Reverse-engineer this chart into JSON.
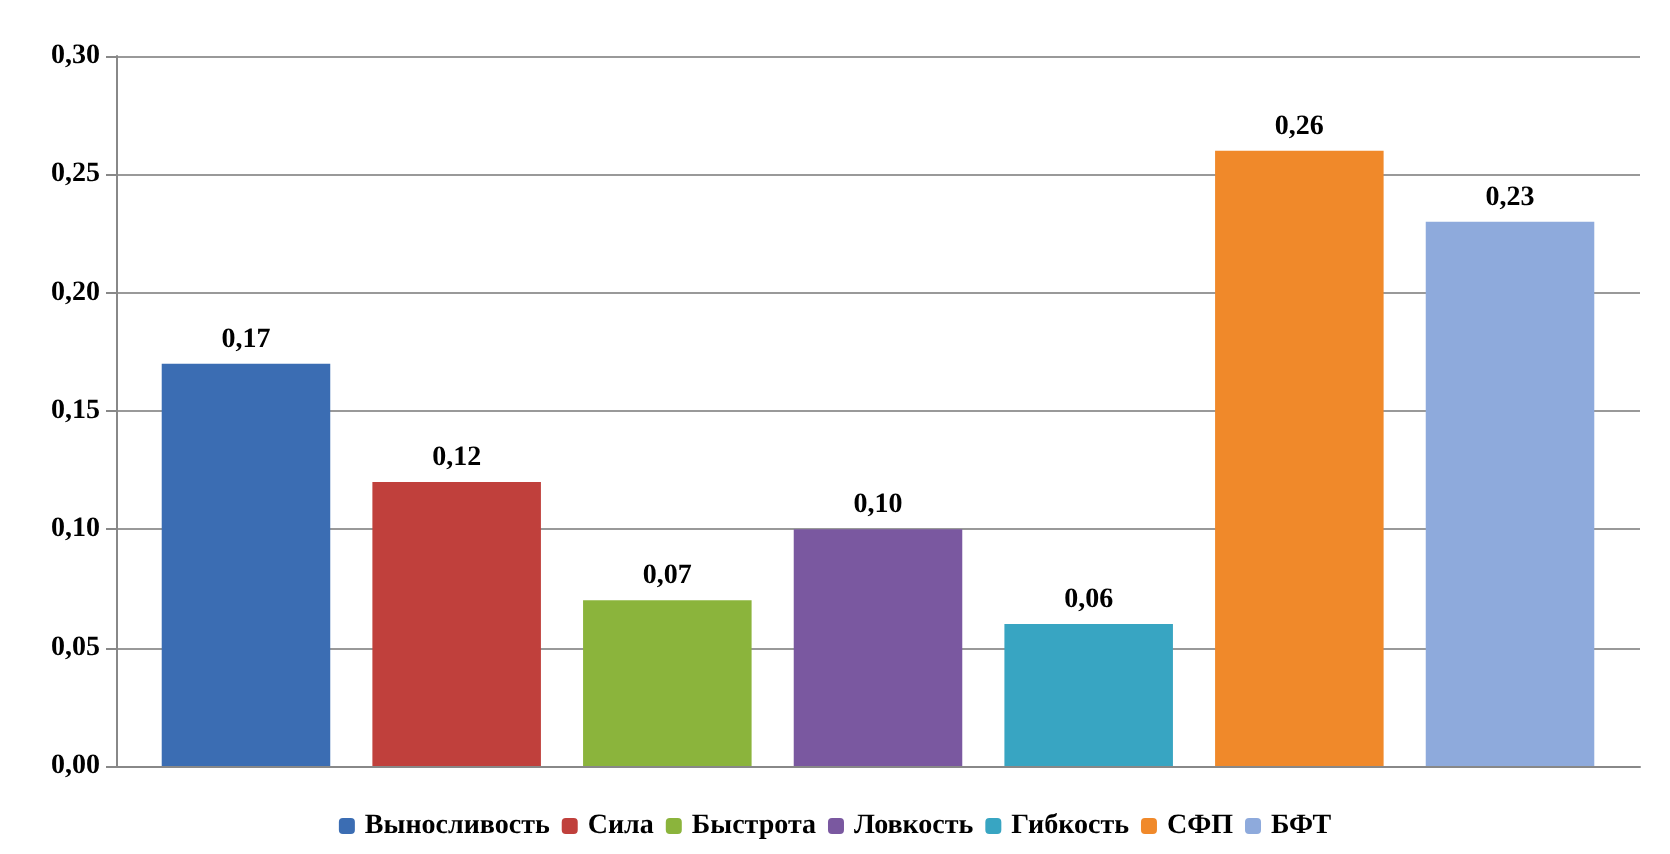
{
  "chart_data": {
    "type": "bar",
    "categories": [
      null
    ],
    "series": [
      {
        "name": "Выносливость",
        "color": "#3b6db3",
        "values": [
          0.17
        ],
        "value_labels": [
          "0,17"
        ]
      },
      {
        "name": "Сила",
        "color": "#c0403c",
        "values": [
          0.12
        ],
        "value_labels": [
          "0,12"
        ]
      },
      {
        "name": "Быстрота",
        "color": "#8bb43c",
        "values": [
          0.07
        ],
        "value_labels": [
          "0,07"
        ]
      },
      {
        "name": "Ловкость",
        "color": "#7a58a0",
        "values": [
          0.1
        ],
        "value_labels": [
          "0,10"
        ]
      },
      {
        "name": "Гибкость",
        "color": "#38a5c2",
        "values": [
          0.06
        ],
        "value_labels": [
          "0,06"
        ]
      },
      {
        "name": "СФП",
        "color": "#f0892a",
        "values": [
          0.26
        ],
        "value_labels": [
          "0,26"
        ]
      },
      {
        "name": "БФТ",
        "color": "#8eaadc",
        "values": [
          0.23
        ],
        "value_labels": [
          "0,23"
        ]
      }
    ],
    "ylim": [
      0,
      0.3
    ],
    "yticks": [
      {
        "value": 0,
        "label": "0,00"
      },
      {
        "value": 0.05,
        "label": "0,05"
      },
      {
        "value": 0.1,
        "label": "0,10"
      },
      {
        "value": 0.15,
        "label": "0,15"
      },
      {
        "value": 0.2,
        "label": "0,20"
      },
      {
        "value": 0.25,
        "label": "0,25"
      },
      {
        "value": 0.3,
        "label": "0,30"
      }
    ],
    "grid": "y",
    "legend": "bottom"
  }
}
